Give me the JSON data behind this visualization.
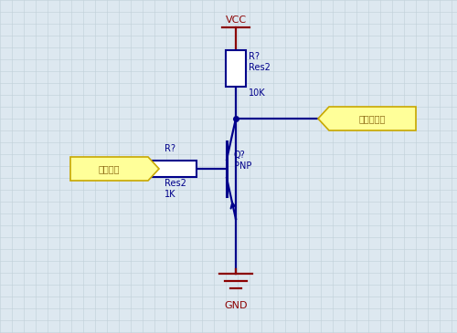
{
  "bg_color": "#dde8f0",
  "grid_color": "#c0cfd8",
  "line_color": "#00008B",
  "vcc_gnd_color": "#8B0000",
  "label_bg": "#FFFF99",
  "label_border": "#C8A800",
  "label_text": "#8B6914",
  "vcc_label": "VCC",
  "gnd_label": "GND",
  "r1_label1": "R?",
  "r1_label2": "Res2",
  "r1_label3": "10K",
  "r2_label1": "R?",
  "r2_label2": "Res2",
  "r2_label3": "1K",
  "q_label1": "Q?",
  "q_label2": "PNP",
  "module_label": "你的模块",
  "mcu_label": "你的单片机",
  "figw": 5.0,
  "figh": 3.65,
  "dpi": 100
}
